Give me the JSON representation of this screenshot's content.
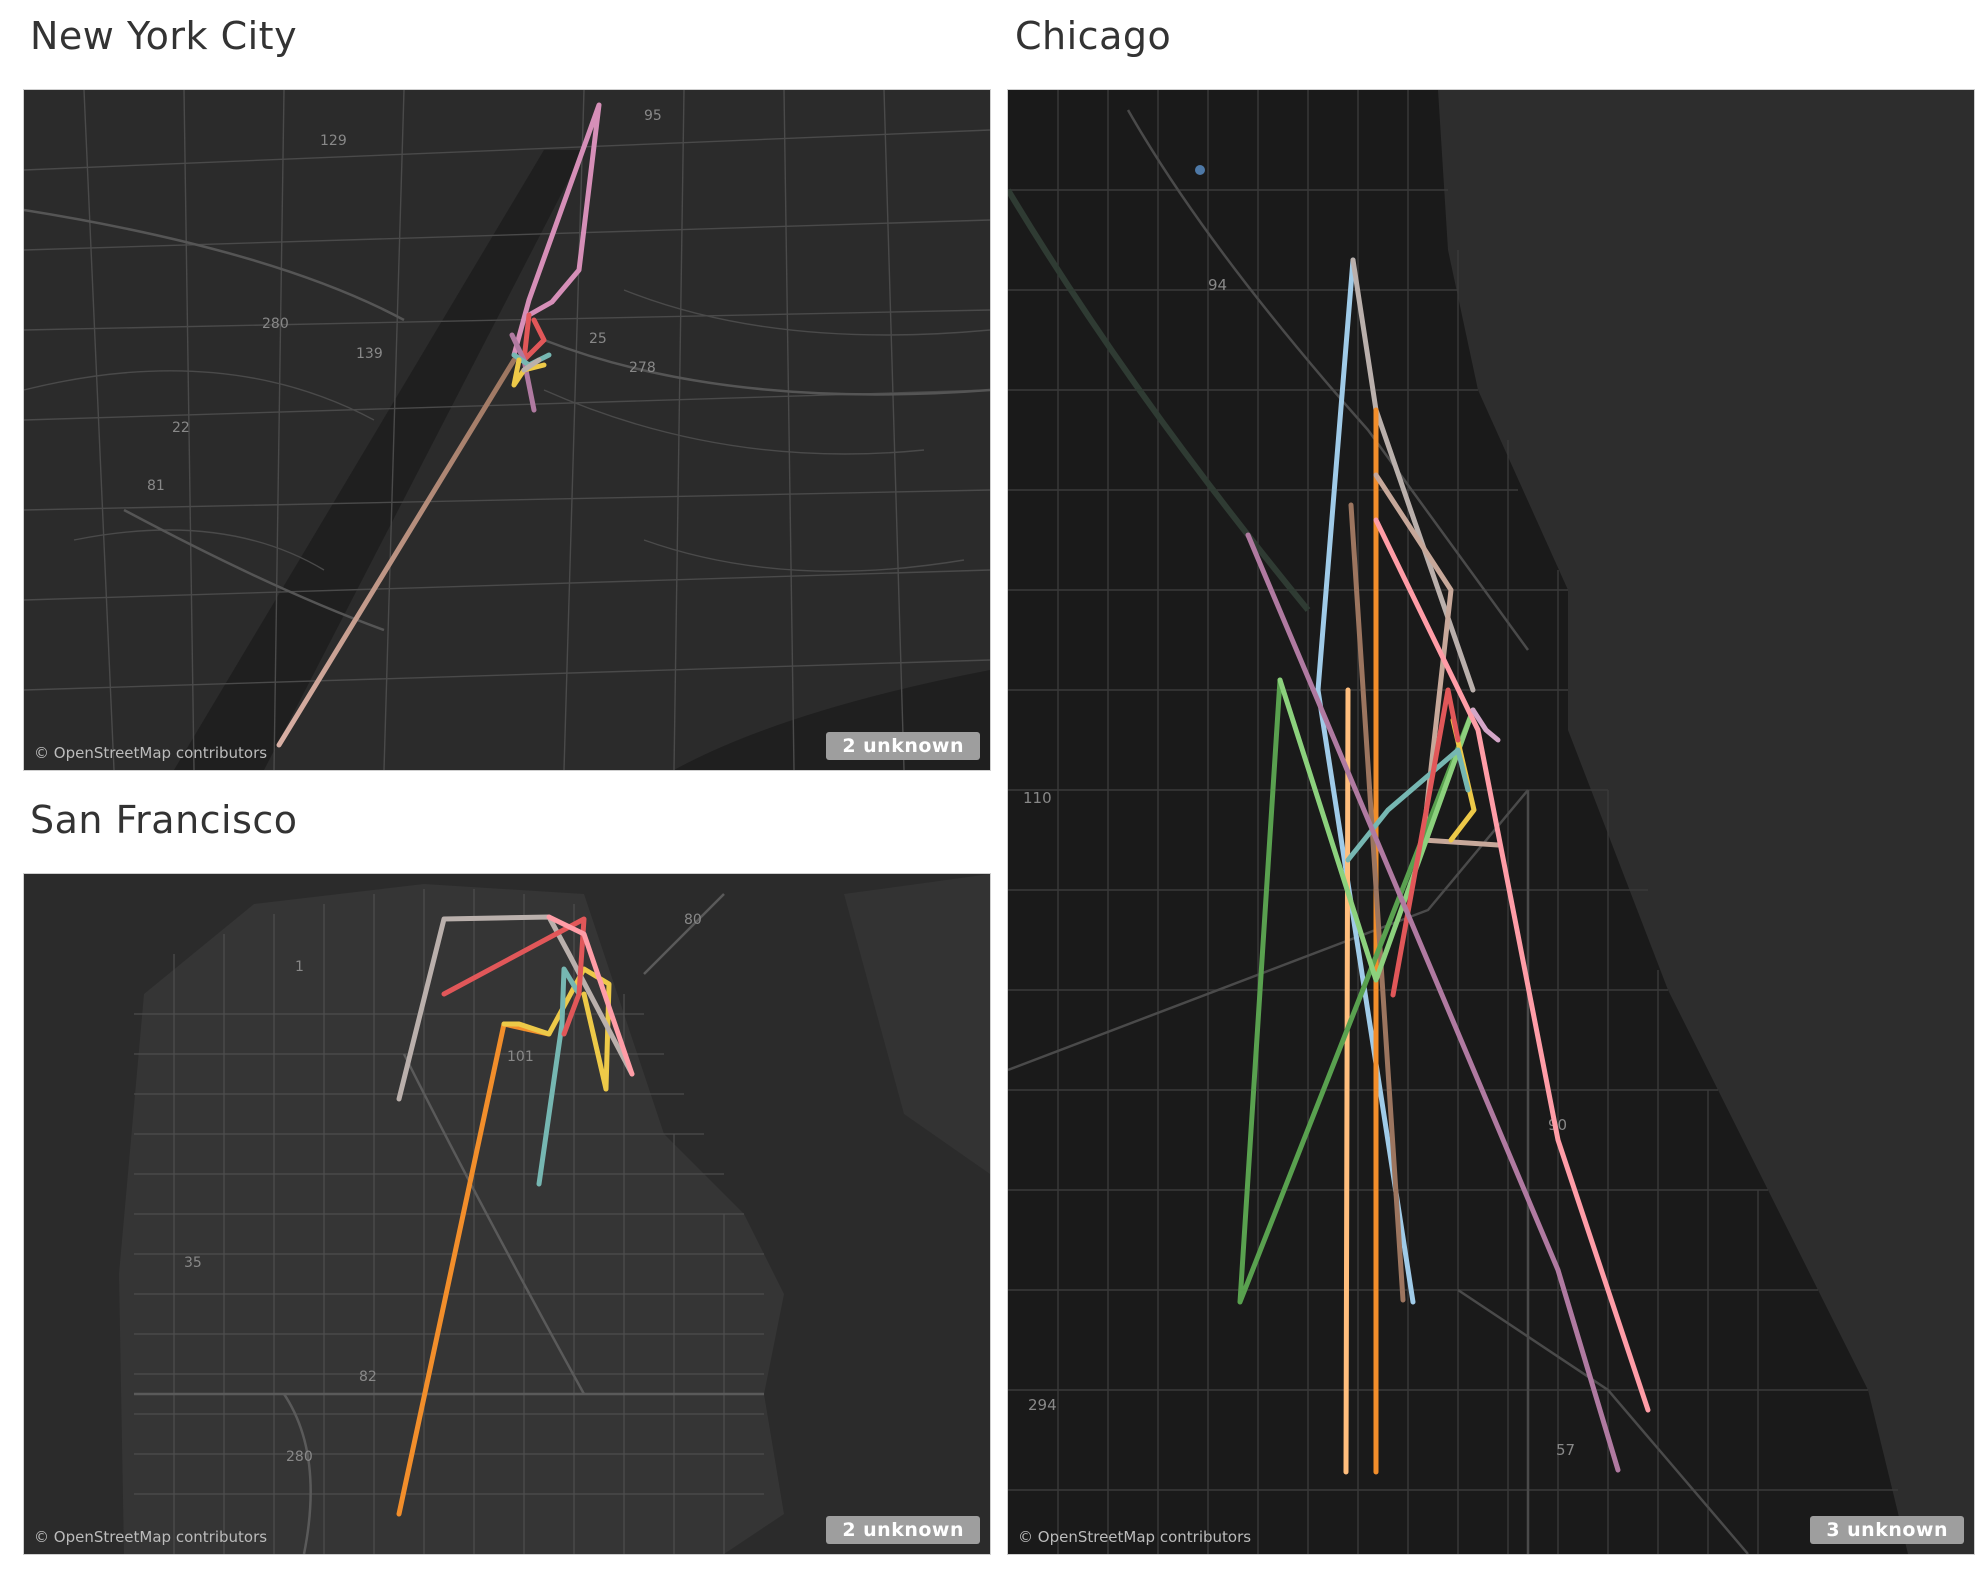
{
  "panels": {
    "nyc": {
      "title": "New York City",
      "attribution": "© OpenStreetMap contributors",
      "unknown_label": "2 unknown",
      "road_labels": [
        "95",
        "129",
        "280",
        "139",
        "22",
        "81",
        "25",
        "278"
      ]
    },
    "sf": {
      "title": "San Francisco",
      "attribution": "© OpenStreetMap contributors",
      "unknown_label": "2 unknown",
      "road_labels": [
        "80",
        "1",
        "101",
        "35",
        "82",
        "280"
      ]
    },
    "chi": {
      "title": "Chicago",
      "attribution": "© OpenStreetMap contributors",
      "unknown_label": "3 unknown",
      "road_labels": [
        "94",
        "110",
        "90",
        "294",
        "57"
      ]
    }
  },
  "colors": {
    "map_background": "#2a2a2a",
    "water": "#262626",
    "roads": "#4a4a4a",
    "route_palette": [
      "#e15759",
      "#f28e2b",
      "#76b7b2",
      "#59a14f",
      "#edc948",
      "#b07aa1",
      "#ff9da7",
      "#9c755f",
      "#bab0ac",
      "#a0cbe8"
    ]
  }
}
